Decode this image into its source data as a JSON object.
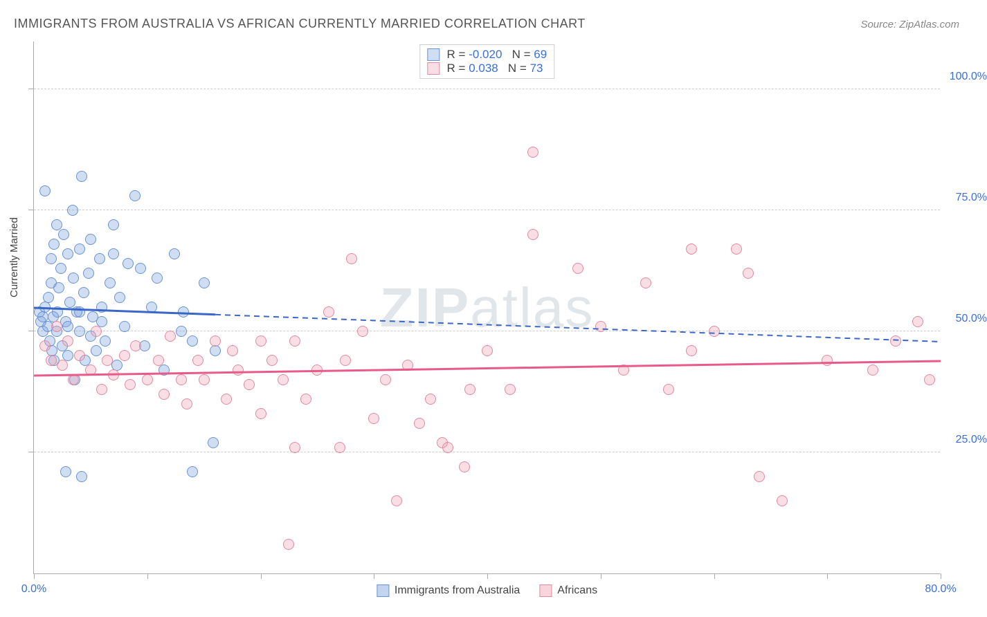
{
  "title": "IMMIGRANTS FROM AUSTRALIA VS AFRICAN CURRENTLY MARRIED CORRELATION CHART",
  "source": "Source: ZipAtlas.com",
  "watermark": "ZIPatlas",
  "chart": {
    "type": "scatter",
    "ylabel": "Currently Married",
    "xlim": [
      0,
      80
    ],
    "ylim": [
      0,
      110
    ],
    "x_display_min": "0.0%",
    "x_display_max": "80.0%",
    "ytick_values": [
      25,
      50,
      75,
      100
    ],
    "ytick_labels": [
      "25.0%",
      "50.0%",
      "75.0%",
      "100.0%"
    ],
    "xtick_values": [
      0,
      10,
      20,
      30,
      40,
      50,
      60,
      70,
      80
    ],
    "ytick_minor": [
      25,
      50,
      75,
      100
    ],
    "background_color": "#ffffff",
    "grid_color": "#cccccc",
    "axis_color": "#aaaaaa",
    "tick_label_color": "#3b6fd8",
    "marker_radius": 8,
    "marker_stroke_width": 1.5,
    "series": [
      {
        "name": "Immigrants from Australia",
        "fill": "rgba(120,160,220,0.35)",
        "stroke": "#6a93d4",
        "R_label": "R = ",
        "R": "-0.020",
        "N_label": "N = ",
        "N": "69",
        "trend": {
          "y_at_x0": 55,
          "y_at_x80": 48,
          "color": "#3a66c8",
          "width": 2,
          "solid_until_x": 16
        },
        "points": [
          [
            0.5,
            54
          ],
          [
            0.6,
            52
          ],
          [
            0.8,
            50
          ],
          [
            0.8,
            53
          ],
          [
            1.0,
            55
          ],
          [
            1.0,
            79
          ],
          [
            1.2,
            51
          ],
          [
            1.3,
            57
          ],
          [
            1.4,
            48
          ],
          [
            1.5,
            60
          ],
          [
            1.5,
            65
          ],
          [
            1.6,
            46
          ],
          [
            1.7,
            53
          ],
          [
            1.8,
            68
          ],
          [
            1.8,
            44
          ],
          [
            2.0,
            72
          ],
          [
            2.0,
            50
          ],
          [
            2.1,
            54
          ],
          [
            2.2,
            59
          ],
          [
            2.4,
            63
          ],
          [
            2.5,
            47
          ],
          [
            2.6,
            70
          ],
          [
            2.8,
            52
          ],
          [
            3.0,
            66
          ],
          [
            3.0,
            45
          ],
          [
            3.2,
            56
          ],
          [
            3.4,
            75
          ],
          [
            3.5,
            61
          ],
          [
            3.6,
            40
          ],
          [
            3.8,
            54
          ],
          [
            4.0,
            67
          ],
          [
            4.0,
            50
          ],
          [
            4.2,
            82
          ],
          [
            4.4,
            58
          ],
          [
            4.5,
            44
          ],
          [
            4.8,
            62
          ],
          [
            5.0,
            69
          ],
          [
            5.2,
            53
          ],
          [
            5.5,
            46
          ],
          [
            5.8,
            65
          ],
          [
            6.0,
            55
          ],
          [
            6.3,
            48
          ],
          [
            6.7,
            60
          ],
          [
            7.0,
            72
          ],
          [
            7.0,
            66
          ],
          [
            7.3,
            43
          ],
          [
            7.6,
            57
          ],
          [
            8.0,
            51
          ],
          [
            8.3,
            64
          ],
          [
            8.9,
            78
          ],
          [
            2.8,
            21
          ],
          [
            4.2,
            20
          ],
          [
            9.4,
            63
          ],
          [
            9.8,
            47
          ],
          [
            10.4,
            55
          ],
          [
            10.9,
            61
          ],
          [
            11.5,
            42
          ],
          [
            12.4,
            66
          ],
          [
            13.0,
            50
          ],
          [
            13.2,
            54
          ],
          [
            14.0,
            48
          ],
          [
            14.0,
            21
          ],
          [
            15.0,
            60
          ],
          [
            15.8,
            27
          ],
          [
            16.0,
            46
          ],
          [
            3.0,
            51
          ],
          [
            4.0,
            54
          ],
          [
            5.0,
            49
          ],
          [
            6.0,
            52
          ]
        ]
      },
      {
        "name": "Africans",
        "fill": "rgba(240,160,180,0.35)",
        "stroke": "#e28aa2",
        "R_label": "R = ",
        "R": "0.038",
        "N_label": "N = ",
        "N": "73",
        "trend": {
          "y_at_x0": 41,
          "y_at_x80": 44,
          "color": "#e85a8a",
          "width": 2,
          "solid_until_x": 80
        },
        "points": [
          [
            1.0,
            47
          ],
          [
            1.5,
            44
          ],
          [
            2.0,
            51
          ],
          [
            2.5,
            43
          ],
          [
            3.0,
            48
          ],
          [
            3.5,
            40
          ],
          [
            4.0,
            45
          ],
          [
            5.0,
            42
          ],
          [
            5.5,
            50
          ],
          [
            6.0,
            38
          ],
          [
            6.5,
            44
          ],
          [
            7.0,
            41
          ],
          [
            8.0,
            45
          ],
          [
            8.5,
            39
          ],
          [
            9.0,
            47
          ],
          [
            10.0,
            40
          ],
          [
            11.0,
            44
          ],
          [
            11.5,
            37
          ],
          [
            12.0,
            49
          ],
          [
            13.0,
            40
          ],
          [
            13.5,
            35
          ],
          [
            14.5,
            44
          ],
          [
            15.0,
            40
          ],
          [
            16.0,
            48
          ],
          [
            17.0,
            36
          ],
          [
            17.5,
            46
          ],
          [
            18.0,
            42
          ],
          [
            19.0,
            39
          ],
          [
            20.0,
            48
          ],
          [
            20.0,
            33
          ],
          [
            21.0,
            44
          ],
          [
            22.0,
            40
          ],
          [
            22.5,
            6
          ],
          [
            23.0,
            48
          ],
          [
            23.0,
            26
          ],
          [
            24.0,
            36
          ],
          [
            25.0,
            42
          ],
          [
            26.0,
            54
          ],
          [
            27.0,
            26
          ],
          [
            27.5,
            44
          ],
          [
            28.0,
            65
          ],
          [
            29.0,
            50
          ],
          [
            30.0,
            32
          ],
          [
            31.0,
            40
          ],
          [
            32.0,
            15
          ],
          [
            33.0,
            43
          ],
          [
            34.0,
            31
          ],
          [
            35.0,
            36
          ],
          [
            36.0,
            27
          ],
          [
            36.5,
            26
          ],
          [
            38.5,
            38
          ],
          [
            38.0,
            22
          ],
          [
            40.0,
            46
          ],
          [
            42.0,
            38
          ],
          [
            44.0,
            70
          ],
          [
            44.0,
            87
          ],
          [
            48.0,
            63
          ],
          [
            50.0,
            51
          ],
          [
            52.0,
            42
          ],
          [
            54.0,
            60
          ],
          [
            56.0,
            38
          ],
          [
            58.0,
            67
          ],
          [
            58.0,
            46
          ],
          [
            60.0,
            50
          ],
          [
            62.0,
            67
          ],
          [
            63.0,
            62
          ],
          [
            64.0,
            20
          ],
          [
            66.0,
            15
          ],
          [
            70.0,
            44
          ],
          [
            74.0,
            42
          ],
          [
            76.0,
            48
          ],
          [
            78.0,
            52
          ],
          [
            79.0,
            40
          ]
        ]
      }
    ],
    "legend_bottom": [
      {
        "label": "Immigrants from Australia",
        "fill": "rgba(120,160,220,0.45)",
        "stroke": "#6a93d4"
      },
      {
        "label": "Africans",
        "fill": "rgba(240,160,180,0.45)",
        "stroke": "#e28aa2"
      }
    ]
  }
}
